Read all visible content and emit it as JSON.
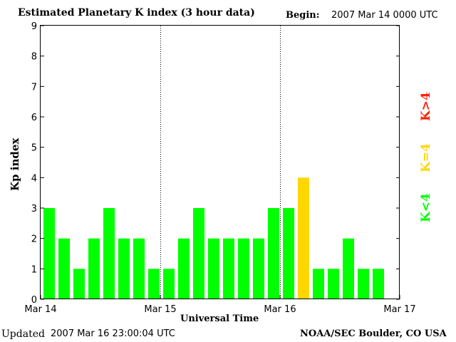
{
  "header": {
    "title": "Estimated Planetary K index (3 hour data)",
    "begin_label": "Begin:",
    "begin_value": "2007 Mar 14 0000 UTC"
  },
  "footer": {
    "updated_label": "Updated",
    "updated_value": "2007 Mar 16 23:00:04 UTC",
    "source": "NOAA/SEC Boulder, CO USA"
  },
  "legend": {
    "low": "K<4",
    "equal": "K=4",
    "high": "K>4"
  },
  "colors": {
    "low": "#00ff00",
    "equal": "#ffd700",
    "high": "#ff2000"
  },
  "chart_data": {
    "type": "bar",
    "title": "Estimated Planetary K index (3 hour data)",
    "xlabel": "Universal Time",
    "ylabel": "Kp index",
    "ylim": [
      0,
      9
    ],
    "yticks": [
      "0",
      "1",
      "2",
      "3",
      "4",
      "5",
      "6",
      "7",
      "8",
      "9"
    ],
    "xticks": [
      "Mar 14",
      "Mar 15",
      "Mar 16",
      "Mar 17"
    ],
    "values": [
      3,
      2,
      1,
      2,
      3,
      2,
      2,
      1,
      1,
      2,
      3,
      2,
      2,
      2,
      2,
      3,
      3,
      4,
      1,
      1,
      2,
      1,
      1
    ],
    "day_separators": true
  }
}
